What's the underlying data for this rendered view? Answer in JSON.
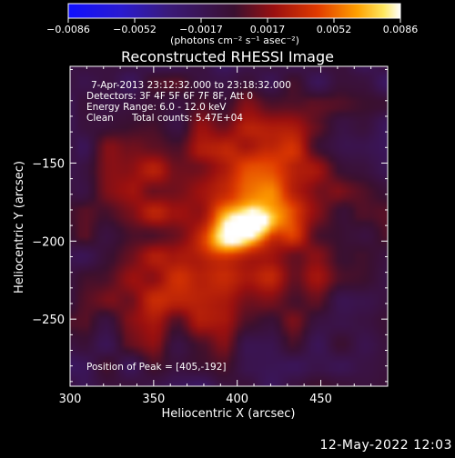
{
  "chart_data": {
    "type": "heatmap",
    "title": "Reconstructed RHESSI Image",
    "xlabel": "Heliocentric X (arcsec)",
    "ylabel": "Heliocentric Y (arcsec)",
    "xlim": [
      300,
      490
    ],
    "ylim": [
      -293,
      -88
    ],
    "x_ticks": [
      300,
      350,
      400,
      450
    ],
    "y_ticks": [
      -150,
      -200,
      -250
    ],
    "colorbar": {
      "range": [
        -0.0086,
        0.0086
      ],
      "tick_labels": [
        "-0.0086",
        "-0.0052",
        "-0.0017",
        "0.0017",
        "0.0052",
        "0.0086"
      ],
      "label": "(photons cm⁻² s⁻¹ asec⁻²)",
      "colormap": "blue-purple-red-yellow-white"
    },
    "annotations": {
      "time_range": "7-Apr-2013 23:12:32.000 to 23:18:32.000",
      "detectors": "Detectors: 3F 4F 5F 6F 7F 8F, Att 0",
      "energy": "Energy Range: 6.0 - 12.0 keV",
      "method": "Clean",
      "total_counts": "Total counts: 5.47E+04",
      "peak": "Position of Peak = [405,-192]"
    },
    "peak_position": [
      405,
      -192
    ],
    "peak_value": 0.0086,
    "grid": false
  },
  "datestamp": "12-May-2022 12:03",
  "colors": {
    "background": "#000000",
    "text": "#ffffff"
  }
}
